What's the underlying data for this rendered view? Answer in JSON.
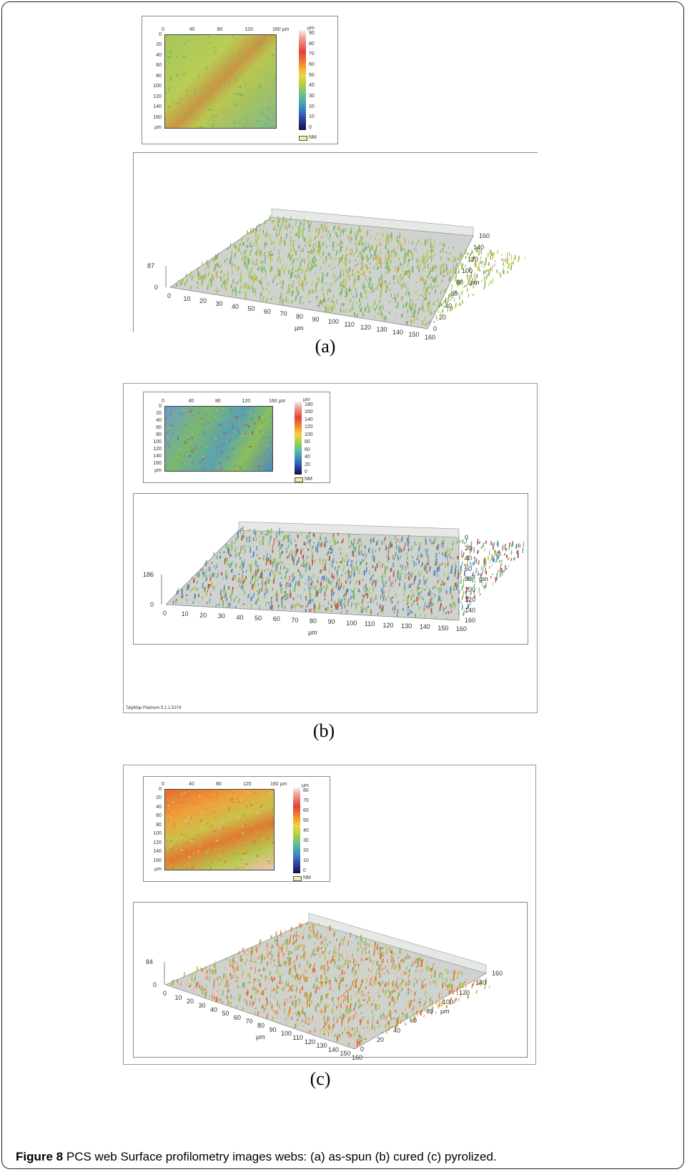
{
  "figure": {
    "label": "Figure 8",
    "caption_text": "PCS web Surface profilometry images webs: (a) as-spun (b) cured (c) pyrolized."
  },
  "panels": [
    {
      "letter": "(a)",
      "map_x_ticks": [
        "0",
        "40",
        "80",
        "120",
        "160 µm"
      ],
      "map_y_ticks": [
        "0",
        "20",
        "40",
        "60",
        "80",
        "100",
        "120",
        "140",
        "160",
        "µm"
      ],
      "scale_unit": "µm",
      "scale_ticks": [
        "90",
        "80",
        "70",
        "60",
        "50",
        "40",
        "30",
        "20",
        "10",
        "0"
      ],
      "nm_label": "NM",
      "surface_z_top": "87",
      "surface_z_zero": "0",
      "surface_x_ticks": [
        "0",
        "10",
        "20",
        "30",
        "40",
        "50",
        "60",
        "70",
        "80",
        "90",
        "100",
        "110",
        "120",
        "130",
        "140",
        "150",
        "160"
      ],
      "surface_x_unit": "µm",
      "surface_y_ticks": [
        "0",
        "20",
        "40",
        "60",
        "80",
        "100",
        "120",
        "140",
        "160"
      ],
      "surface_y_unit": "µm",
      "palette": [
        "#b8c94a",
        "#9ac24c",
        "#7bb65a",
        "#c9a843",
        "#6fae7c"
      ]
    },
    {
      "letter": "(b)",
      "map_x_ticks": [
        "0",
        "40",
        "80",
        "120",
        "160 µm"
      ],
      "map_y_ticks": [
        "0",
        "20",
        "40",
        "60",
        "80",
        "100",
        "120",
        "140",
        "160",
        "µm"
      ],
      "scale_unit": "µm",
      "scale_ticks": [
        "180",
        "160",
        "140",
        "120",
        "100",
        "80",
        "60",
        "40",
        "20",
        "0"
      ],
      "nm_label": "NM",
      "surface_z_top": "186",
      "surface_z_zero": "0",
      "surface_x_ticks": [
        "0",
        "10",
        "20",
        "30",
        "40",
        "50",
        "60",
        "70",
        "80",
        "90",
        "100",
        "110",
        "120",
        "130",
        "140",
        "150",
        "160"
      ],
      "surface_x_unit": "µm",
      "surface_y_ticks": [
        "160",
        "140",
        "120",
        "100",
        "80",
        "60",
        "40",
        "20",
        "0"
      ],
      "surface_y_unit": "µm",
      "software_label": "TalyMap Platinum 5.1.1.5374",
      "palette": [
        "#5fa0a8",
        "#7bb65a",
        "#4d7fbe",
        "#a9c14c",
        "#c0503b"
      ]
    },
    {
      "letter": "(c)",
      "map_x_ticks": [
        "0",
        "40",
        "80",
        "120",
        "160 µm"
      ],
      "map_y_ticks": [
        "0",
        "20",
        "40",
        "60",
        "80",
        "100",
        "120",
        "140",
        "160",
        "µm"
      ],
      "scale_unit": "µm",
      "scale_ticks": [
        "80",
        "70",
        "60",
        "50",
        "40",
        "30",
        "20",
        "10",
        "0"
      ],
      "nm_label": "NM",
      "surface_z_top": "84",
      "surface_z_zero": "0",
      "surface_x_ticks": [
        "0",
        "10",
        "20",
        "30",
        "40",
        "50",
        "60",
        "70",
        "80",
        "90",
        "100",
        "110",
        "120",
        "130",
        "140",
        "150",
        "160"
      ],
      "surface_x_unit": "µm",
      "surface_y_ticks": [
        "0",
        "20",
        "40",
        "60",
        "80",
        "100",
        "120",
        "140",
        "160"
      ],
      "surface_y_unit": "µm",
      "palette": [
        "#e8692f",
        "#b9c24a",
        "#d9852e",
        "#7bb65a",
        "#f3b7a8"
      ]
    }
  ]
}
